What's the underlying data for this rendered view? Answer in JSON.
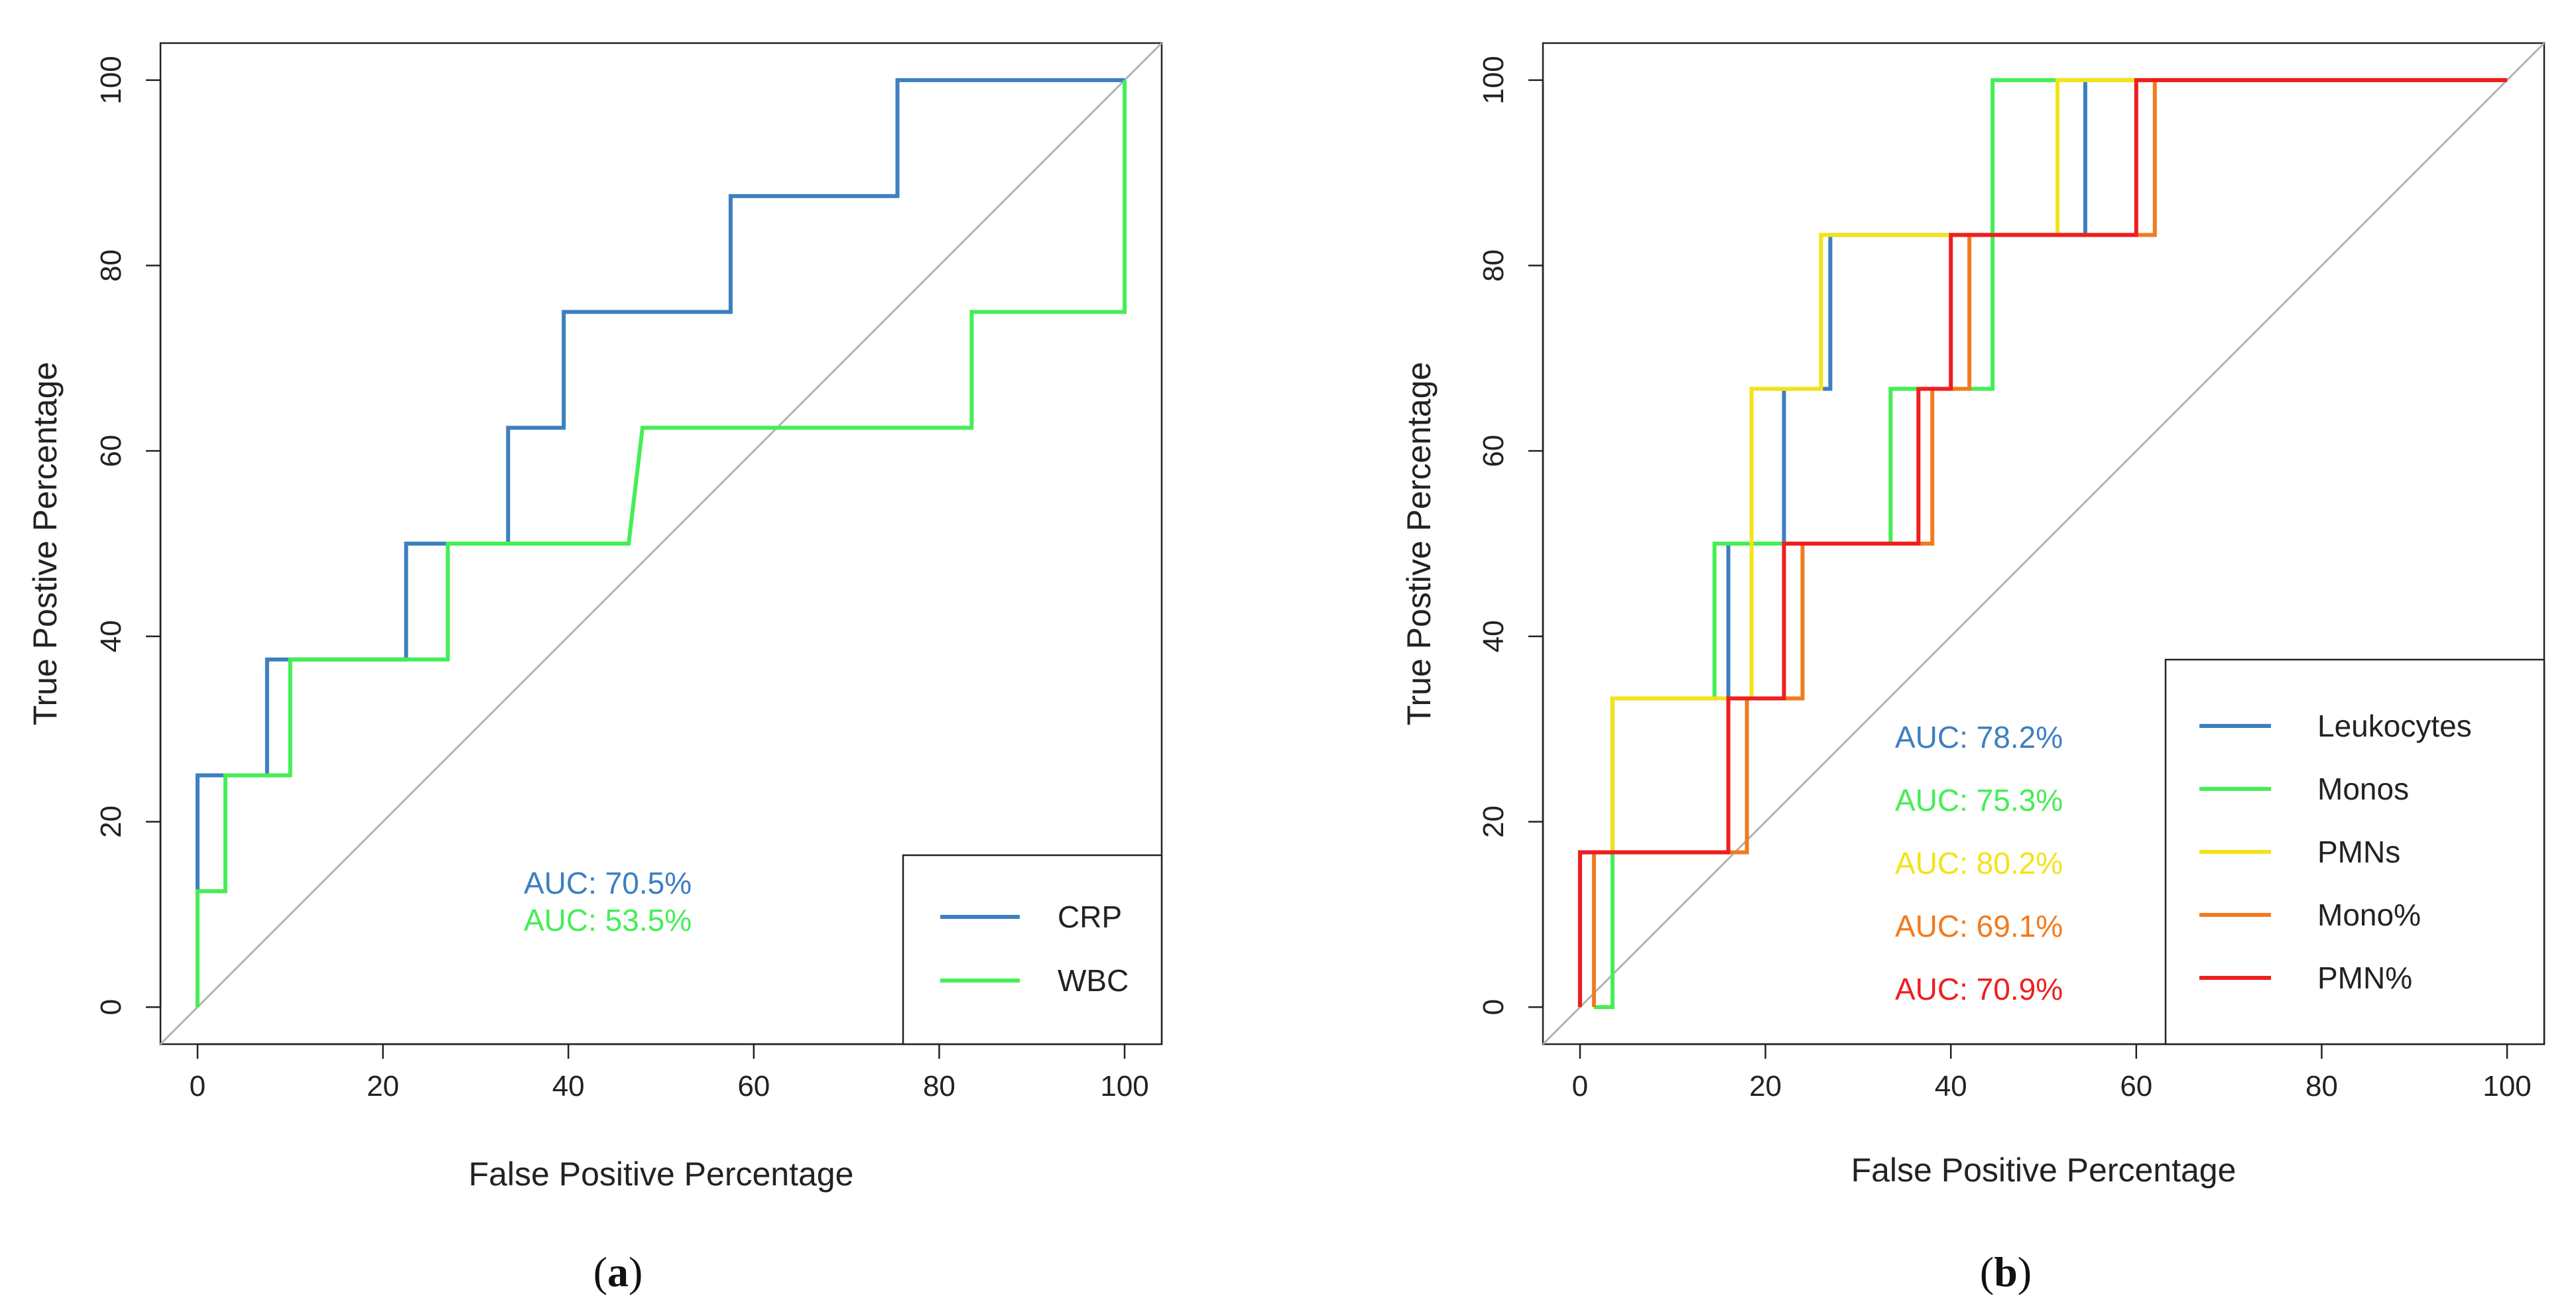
{
  "chart_data": [
    {
      "panel_label": "a",
      "type": "line",
      "subtype": "roc",
      "xlabel": "False Positive Percentage",
      "ylabel": "True Postive Percentage",
      "xlim": [
        -4,
        104
      ],
      "ylim": [
        -4,
        104
      ],
      "xticks": [
        0,
        20,
        40,
        60,
        80,
        100
      ],
      "yticks": [
        0,
        20,
        40,
        60,
        80,
        100
      ],
      "grid": false,
      "diagonal_reference": true,
      "legend_position": "bottom-right",
      "series": [
        {
          "name": "CRP",
          "color": "#3d7fc0",
          "auc_label": "AUC: 70.5%",
          "x": [
            0,
            0,
            3,
            3,
            7.5,
            7.5,
            22.5,
            22.5,
            33.5,
            33.5,
            39.5,
            39.5,
            57.5,
            57.5,
            75.5,
            75.5,
            100
          ],
          "y": [
            12.5,
            25,
            25,
            25,
            25,
            37.5,
            37.5,
            50,
            50,
            62.5,
            62.5,
            75,
            75,
            87.5,
            87.5,
            100,
            100
          ]
        },
        {
          "name": "WBC",
          "color": "#44ee55",
          "auc_label": "AUC: 53.5%",
          "x": [
            0,
            0,
            3,
            3,
            10,
            10,
            27,
            27,
            46.5,
            48,
            83.5,
            83.5,
            100,
            100
          ],
          "y": [
            0,
            12.5,
            12.5,
            25,
            25,
            37.5,
            37.5,
            50,
            50,
            62.5,
            62.5,
            75,
            75,
            100
          ]
        }
      ]
    },
    {
      "panel_label": "b",
      "type": "line",
      "subtype": "roc",
      "xlabel": "False Positive Percentage",
      "ylabel": "True Postive Percentage",
      "xlim": [
        -4,
        104
      ],
      "ylim": [
        -4,
        104
      ],
      "xticks": [
        0,
        20,
        40,
        60,
        80,
        100
      ],
      "yticks": [
        0,
        20,
        40,
        60,
        80,
        100
      ],
      "grid": false,
      "diagonal_reference": true,
      "legend_position": "bottom-right",
      "series": [
        {
          "name": "Leukocytes",
          "color": "#3d7fc0",
          "auc_label": "AUC: 78.2%",
          "x": [
            0,
            0,
            3.5,
            3.5,
            16,
            16,
            22,
            22,
            27,
            27,
            54.5,
            54.5,
            100
          ],
          "y": [
            0,
            16.7,
            16.7,
            33.3,
            33.3,
            50,
            50,
            66.7,
            66.7,
            83.3,
            83.3,
            100,
            100
          ]
        },
        {
          "name": "Monos",
          "color": "#44ee55",
          "auc_label": "AUC: 75.3%",
          "x": [
            1.5,
            3.5,
            3.5,
            7.5,
            7.5,
            14.5,
            14.5,
            33.5,
            33.5,
            44.5,
            44.5,
            100
          ],
          "y": [
            0,
            0,
            33.3,
            33.3,
            33.3,
            33.3,
            50,
            50,
            66.7,
            66.7,
            100,
            100
          ]
        },
        {
          "name": "PMNs",
          "color": "#f4e21a",
          "auc_label": "AUC: 80.2%",
          "x": [
            3.5,
            3.5,
            18.5,
            18.5,
            26,
            26,
            51.5,
            51.5,
            100
          ],
          "y": [
            16.7,
            33.3,
            33.3,
            66.7,
            66.7,
            83.3,
            83.3,
            100,
            100
          ]
        },
        {
          "name": "Mono%",
          "color": "#f27b1e",
          "auc_label": "AUC: 69.1%",
          "x": [
            1.5,
            1.5,
            18,
            18,
            24,
            24,
            38,
            38,
            42,
            42,
            62,
            62,
            100
          ],
          "y": [
            0,
            16.7,
            16.7,
            33.3,
            33.3,
            50,
            50,
            66.7,
            66.7,
            83.3,
            83.3,
            100,
            100
          ]
        },
        {
          "name": "PMN%",
          "color": "#ee1f1f",
          "auc_label": "AUC: 70.9%",
          "x": [
            0,
            0,
            16,
            16,
            22,
            22,
            36.5,
            36.5,
            40,
            40,
            60,
            60,
            100
          ],
          "y": [
            0,
            16.7,
            16.7,
            33.3,
            33.3,
            50,
            50,
            66.7,
            66.7,
            83.3,
            83.3,
            100,
            100
          ]
        }
      ]
    }
  ],
  "captions": {
    "a": "a",
    "b": "b"
  }
}
